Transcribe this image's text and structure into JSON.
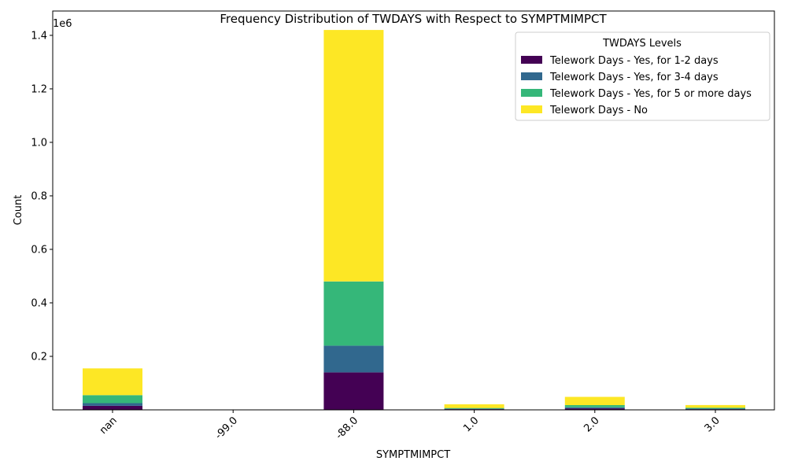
{
  "chart_data": {
    "type": "bar",
    "stacked": true,
    "title": "Frequency Distribution of TWDAYS with Respect to SYMPTMIMPCT",
    "xlabel": "SYMPTMIMPCT",
    "ylabel": "Count",
    "y_offset_label": "1e6",
    "categories": [
      "nan",
      "-99.0",
      "-88.0",
      "1.0",
      "2.0",
      "3.0"
    ],
    "ylim": [
      0,
      1491000
    ],
    "yticks": [
      200000,
      400000,
      600000,
      800000,
      1000000,
      1200000,
      1400000
    ],
    "ytick_labels": [
      "0.2",
      "0.4",
      "0.6",
      "0.8",
      "1.0",
      "1.2",
      "1.4"
    ],
    "grid": false,
    "legend": {
      "title": "TWDAYS Levels",
      "placement": "top-right"
    },
    "series": [
      {
        "name": "Telework Days - Yes, for 1-2 days",
        "color": "#440154",
        "values": [
          15000,
          0,
          140000,
          2500,
          5500,
          2500
        ]
      },
      {
        "name": "Telework Days - Yes, for 3-4 days",
        "color": "#31688e",
        "values": [
          10000,
          0,
          100000,
          1500,
          4000,
          2000
        ]
      },
      {
        "name": "Telework Days - Yes, for 5 or more days",
        "color": "#35b779",
        "values": [
          30000,
          0,
          240000,
          3000,
          8000,
          3500
        ]
      },
      {
        "name": "Telework Days - No",
        "color": "#fde725",
        "values": [
          100000,
          0,
          940000,
          14000,
          31000,
          10000
        ]
      }
    ]
  }
}
